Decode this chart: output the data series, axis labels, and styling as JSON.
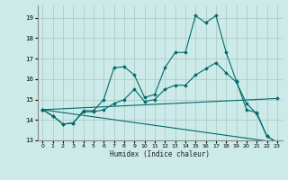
{
  "xlabel": "Humidex (Indice chaleur)",
  "ylabel": "",
  "xlim": [
    -0.5,
    23.5
  ],
  "ylim": [
    13.0,
    19.6
  ],
  "bg_color": "#cceae8",
  "grid_color": "#b0d0ce",
  "line_color": "#006b6b",
  "xticks": [
    0,
    1,
    2,
    3,
    4,
    5,
    6,
    7,
    8,
    9,
    10,
    11,
    12,
    13,
    14,
    15,
    16,
    17,
    18,
    19,
    20,
    21,
    22,
    23
  ],
  "yticks": [
    13,
    14,
    15,
    16,
    17,
    18,
    19
  ],
  "line1_x": [
    0,
    1,
    2,
    3,
    4,
    5,
    6,
    7,
    8,
    9,
    10,
    11,
    12,
    13,
    14,
    15,
    16,
    17,
    18,
    19,
    20,
    21,
    22,
    23
  ],
  "line1_y": [
    14.5,
    14.2,
    13.8,
    13.85,
    14.45,
    14.45,
    15.0,
    16.55,
    16.6,
    16.2,
    15.1,
    15.25,
    16.55,
    17.3,
    17.3,
    19.1,
    18.75,
    19.1,
    17.3,
    15.9,
    14.5,
    14.35,
    13.2,
    12.9
  ],
  "line2_x": [
    0,
    1,
    2,
    3,
    4,
    5,
    6,
    7,
    8,
    9,
    10,
    11,
    12,
    13,
    14,
    15,
    16,
    17,
    18,
    19,
    20,
    21,
    22,
    23
  ],
  "line2_y": [
    14.5,
    14.2,
    13.8,
    13.85,
    14.4,
    14.4,
    14.5,
    14.8,
    15.0,
    15.5,
    14.9,
    15.0,
    15.5,
    15.7,
    15.7,
    16.2,
    16.5,
    16.8,
    16.3,
    15.85,
    14.8,
    14.3,
    13.2,
    12.9
  ],
  "line3_x": [
    0,
    23
  ],
  "line3_y": [
    14.5,
    15.05
  ],
  "line4_x": [
    0,
    23
  ],
  "line4_y": [
    14.5,
    12.9
  ]
}
